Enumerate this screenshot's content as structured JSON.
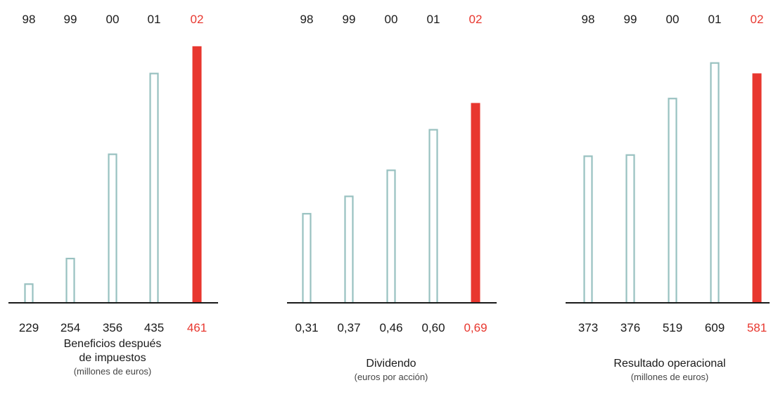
{
  "colors": {
    "outline": "#98c1c0",
    "highlight": "#e8372f",
    "axis": "#1a1a1a",
    "text": "#1a1a1a"
  },
  "chart_data": [
    {
      "type": "bar",
      "categories": [
        "98",
        "99",
        "00",
        "01",
        "02"
      ],
      "values": [
        229,
        254,
        356,
        435,
        461
      ],
      "value_labels": [
        "229",
        "254",
        "356",
        "435",
        "461"
      ],
      "highlight_index": 4,
      "title": "Beneficios después de impuestos",
      "title_lines": [
        "Beneficios después",
        "de impuestos"
      ],
      "subtitle": "(millones de euros)",
      "ylim": [
        210,
        465
      ]
    },
    {
      "type": "bar",
      "categories": [
        "98",
        "99",
        "00",
        "01",
        "02"
      ],
      "values": [
        0.31,
        0.37,
        0.46,
        0.6,
        0.69
      ],
      "value_labels": [
        "0,31",
        "0,37",
        "0,46",
        "0,60",
        "0,69"
      ],
      "highlight_index": 4,
      "title": "Dividendo",
      "title_lines": [
        "Dividendo"
      ],
      "subtitle": "(euros por acción)",
      "ylim": [
        0,
        0.9
      ]
    },
    {
      "type": "bar",
      "categories": [
        "98",
        "99",
        "00",
        "01",
        "02"
      ],
      "values": [
        373,
        376,
        519,
        609,
        581
      ],
      "value_labels": [
        "373",
        "376",
        "519",
        "609",
        "581"
      ],
      "highlight_index": 4,
      "title": "Resultado operacional",
      "title_lines": [
        "Resultado operacional"
      ],
      "subtitle": "(millones de euros)",
      "ylim": [
        0,
        660
      ]
    }
  ]
}
